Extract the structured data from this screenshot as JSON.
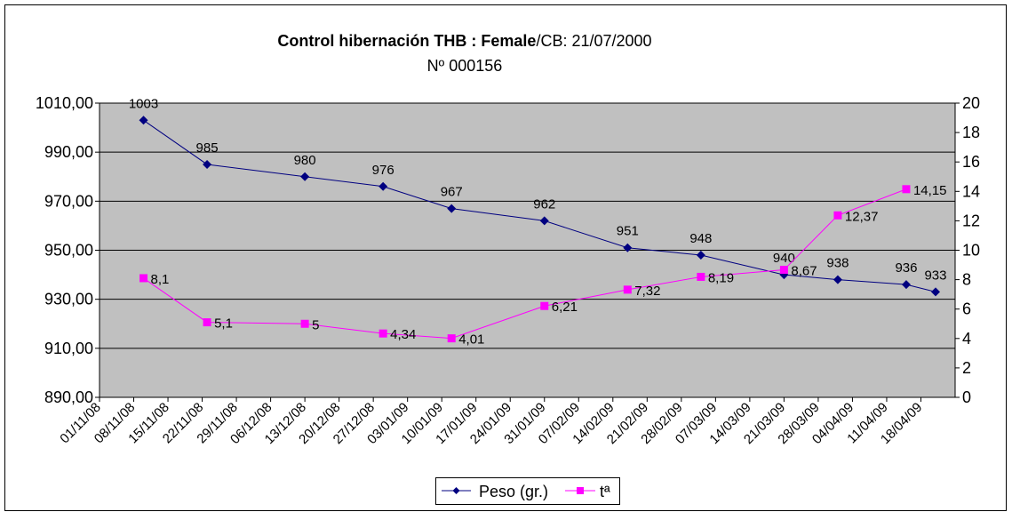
{
  "chart_data": {
    "type": "line",
    "title_bold": "Control hibernación THB :  Female",
    "title_rest": "/CB: 21/07/2000",
    "subtitle": "Nº 000156",
    "xlabel": "",
    "ylabel": "",
    "y2label": "",
    "grid": true,
    "legend_position": "bottom",
    "xlim": [
      "01/11/08",
      "25/04/09"
    ],
    "ylim": [
      890,
      1010
    ],
    "y2lim": [
      0,
      20
    ],
    "x_ticks": [
      "01/11/08",
      "08/11/08",
      "15/11/08",
      "22/11/08",
      "29/11/08",
      "06/12/08",
      "13/12/08",
      "20/12/08",
      "27/12/08",
      "03/01/09",
      "10/01/09",
      "17/01/09",
      "24/01/09",
      "31/01/09",
      "07/02/09",
      "14/02/09",
      "21/02/09",
      "28/02/09",
      "07/03/09",
      "14/03/09",
      "21/03/09",
      "28/03/09",
      "04/04/09",
      "11/04/09",
      "18/04/09"
    ],
    "y_ticks": [
      "890,00",
      "910,00",
      "930,00",
      "950,00",
      "970,00",
      "990,00",
      "1010,00"
    ],
    "y2_ticks": [
      "0",
      "2",
      "4",
      "6",
      "8",
      "10",
      "12",
      "14",
      "16",
      "18",
      "20"
    ],
    "series": [
      {
        "name": "Peso (gr.)",
        "axis": "left",
        "color": "#000080",
        "marker": "diamond",
        "x": [
          "10/11/08",
          "23/11/08",
          "13/12/08",
          "29/12/08",
          "12/01/09",
          "31/01/09",
          "17/02/09",
          "04/03/09",
          "21/03/09",
          "01/04/09",
          "15/04/09",
          "21/04/09"
        ],
        "values": [
          1003,
          985,
          980,
          976,
          967,
          962,
          951,
          948,
          940,
          938,
          936,
          933
        ],
        "labels": [
          "1003",
          "985",
          "980",
          "976",
          "967",
          "962",
          "951",
          "948",
          "940",
          "938",
          "936",
          "933"
        ]
      },
      {
        "name": "tª",
        "axis": "right",
        "color": "#FF00FF",
        "marker": "square",
        "x": [
          "10/11/08",
          "23/11/08",
          "13/12/08",
          "29/12/08",
          "12/01/09",
          "31/01/09",
          "17/02/09",
          "04/03/09",
          "21/03/09",
          "01/04/09",
          "15/04/09"
        ],
        "values": [
          8.1,
          5.1,
          5,
          4.34,
          4.01,
          6.21,
          7.32,
          8.19,
          8.67,
          12.37,
          14.15
        ],
        "labels": [
          "8,1",
          "5,1",
          "5",
          "4,34",
          "4,01",
          "6,21",
          "7,32",
          "8,19",
          "8,67",
          "12,37",
          "14,15"
        ]
      }
    ]
  },
  "colors": {
    "plot_bg": "#C0C0C0",
    "grid": "#000000"
  }
}
